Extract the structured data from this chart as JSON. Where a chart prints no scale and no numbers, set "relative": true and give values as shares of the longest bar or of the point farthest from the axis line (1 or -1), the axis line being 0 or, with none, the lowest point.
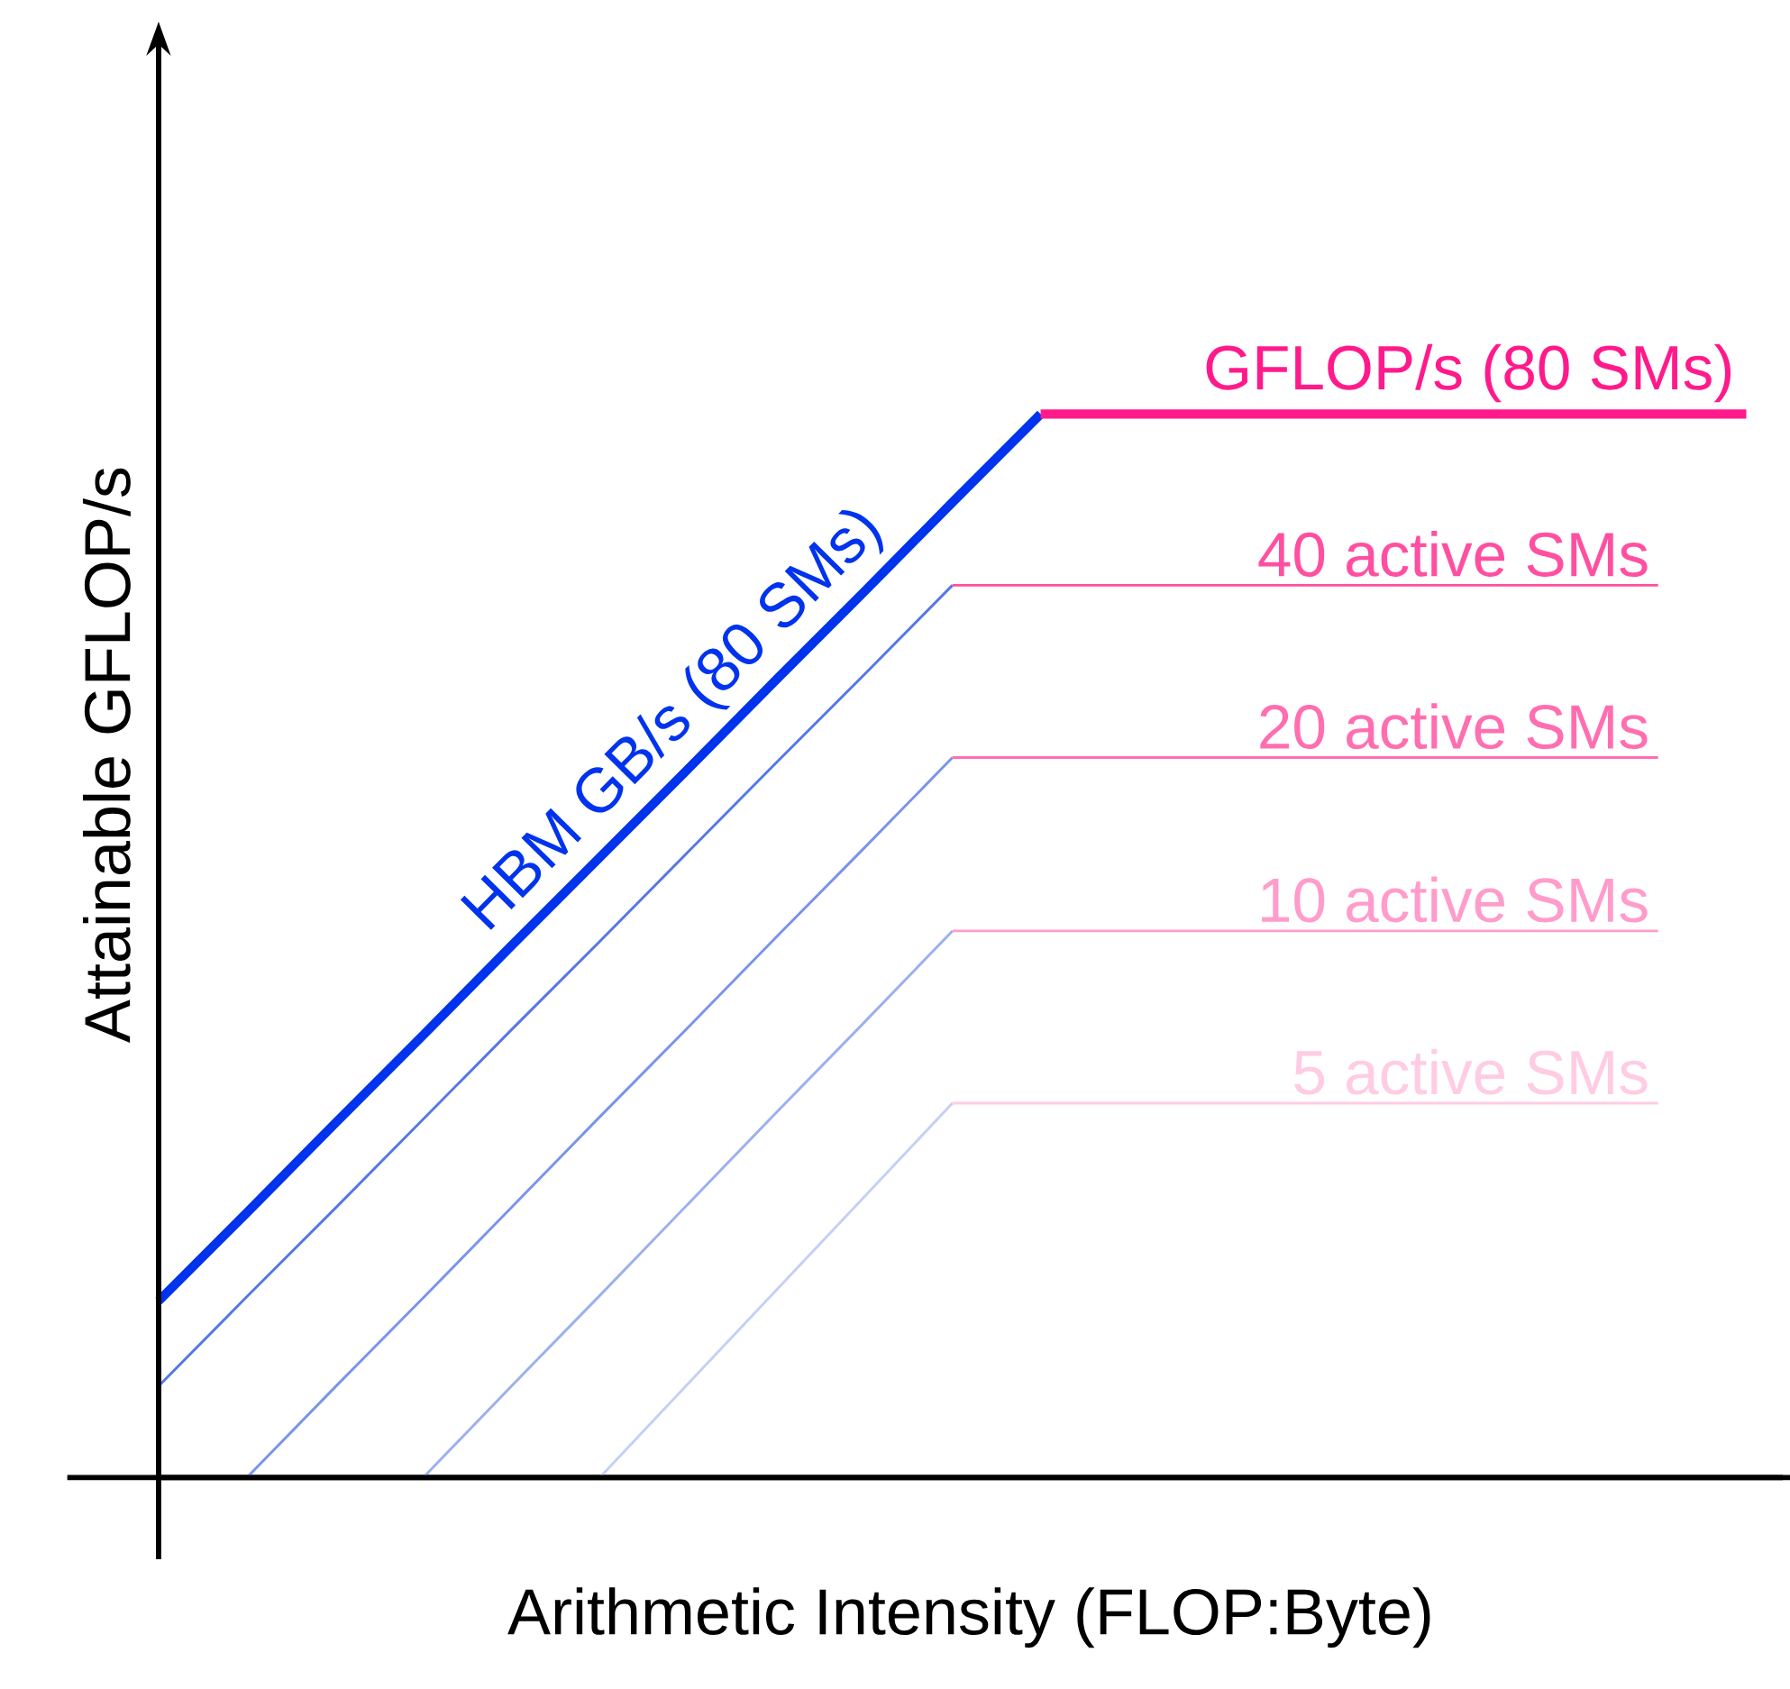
{
  "chart_data": {
    "type": "line",
    "relative": true,
    "xlabel": "Arithmetic Intensity (FLOP:Byte)",
    "ylabel": "Attainable GFLOP/s",
    "tick_labels": false,
    "marker": "none",
    "line_style": "solid",
    "categories": [
      null,
      null,
      null,
      null,
      null,
      null,
      null,
      null,
      null,
      null,
      null,
      null,
      null,
      null,
      null,
      null,
      null,
      null,
      null
    ],
    "series": [
      {
        "name": "HBM GB/s (80 SMs)",
        "color": "#0033ee",
        "values": [
          0.166,
          0.249,
          0.333,
          0.416,
          0.5,
          0.583,
          0.666,
          0.75,
          0.833,
          0.917,
          1,
          null,
          null,
          null,
          null,
          null,
          null,
          null,
          null
        ]
      },
      {
        "color": "#5577e8",
        "values": [
          0.086,
          0.17,
          0.253,
          0.337,
          0.421,
          0.504,
          0.588,
          0.672,
          0.755,
          0.839,
          null,
          null,
          null,
          null,
          null,
          null,
          null,
          null,
          null
        ]
      },
      {
        "color": "#7a94ea",
        "values": [
          null,
          0,
          0.085,
          0.169,
          0.254,
          0.339,
          0.423,
          0.508,
          0.592,
          0.677,
          null,
          null,
          null,
          null,
          null,
          null,
          null,
          null,
          null
        ]
      },
      {
        "color": "#9cb0ee",
        "values": [
          null,
          null,
          null,
          0,
          0.086,
          0.171,
          0.257,
          0.343,
          0.428,
          0.514,
          null,
          null,
          null,
          null,
          null,
          null,
          null,
          null,
          null
        ]
      },
      {
        "color": "#c5d0f5",
        "values": [
          null,
          null,
          null,
          null,
          null,
          0,
          0.088,
          0.176,
          0.264,
          0.352,
          null,
          null,
          null,
          null,
          null,
          null,
          null,
          null,
          null
        ]
      },
      {
        "name": "GFLOP/s (80 SMs)",
        "color": "#ff1a8c",
        "values": [
          null,
          null,
          null,
          null,
          null,
          null,
          null,
          null,
          null,
          null,
          1,
          1,
          1,
          1,
          1,
          1,
          1,
          1,
          1
        ]
      },
      {
        "name": "40 active SMs",
        "color": "#ff4fa0",
        "values": [
          null,
          null,
          null,
          null,
          null,
          null,
          null,
          null,
          null,
          0.839,
          0.839,
          0.839,
          0.839,
          0.839,
          0.839,
          0.839,
          0.839,
          0.839,
          null
        ]
      },
      {
        "name": "20 active SMs",
        "color": "#ff6eb0",
        "values": [
          null,
          null,
          null,
          null,
          null,
          null,
          null,
          null,
          null,
          0.677,
          0.677,
          0.677,
          0.677,
          0.677,
          0.677,
          0.677,
          0.677,
          0.677,
          null
        ]
      },
      {
        "name": "10 active SMs",
        "color": "#ff9ccb",
        "values": [
          null,
          null,
          null,
          null,
          null,
          null,
          null,
          null,
          null,
          0.514,
          0.514,
          0.514,
          0.514,
          0.514,
          0.514,
          0.514,
          0.514,
          0.514,
          null
        ]
      },
      {
        "name": "5 active SMs",
        "color": "#ffcce3",
        "values": [
          null,
          null,
          null,
          null,
          null,
          null,
          null,
          null,
          null,
          0.352,
          0.352,
          0.352,
          0.352,
          0.352,
          0.352,
          0.352,
          0.352,
          0.352,
          null
        ]
      }
    ]
  }
}
